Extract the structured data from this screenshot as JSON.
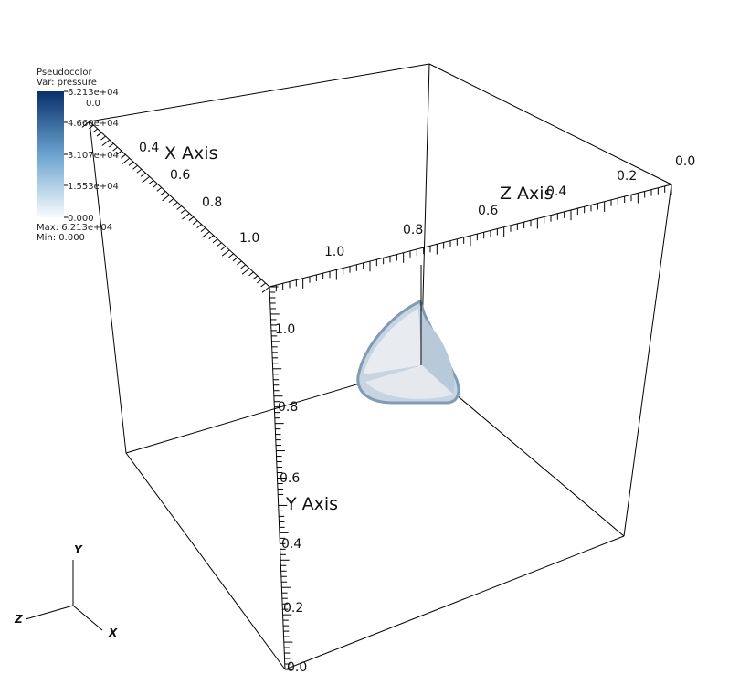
{
  "legend": {
    "plot_type": "Pseudocolor",
    "var_label": "Var: pressure",
    "tick_labels": [
      "6.213e+04",
      "4.660e+04",
      "3.107e+04",
      "1.553e+04",
      "0.000"
    ],
    "overlay_label": "0.0",
    "max_label": "Max:  6.213e+04",
    "min_label": "Min:  0.000",
    "color_top": "#08306b",
    "color_bottom": "#f7fbff"
  },
  "chart_data": {
    "type": "3d-volume",
    "title": "",
    "variable": "pressure",
    "value_range": [
      0,
      62130
    ],
    "axes": {
      "x": {
        "title": "X Axis",
        "ticks": [
          "0.4",
          "0.6",
          "0.8",
          "1.0"
        ]
      },
      "y": {
        "title": "Y Axis",
        "ticks": [
          "0.0",
          "0.2",
          "0.4",
          "0.6",
          "0.8",
          "1.0"
        ]
      },
      "z": {
        "title": "Z Axis",
        "ticks": [
          "0.0",
          "0.2",
          "0.4",
          "0.6",
          "0.8",
          "1.0"
        ]
      }
    },
    "triad": {
      "x": "X",
      "y": "Y",
      "z": "Z"
    },
    "surface_colors": [
      "#c7d4e2",
      "#e8ebef",
      "#b8c9da",
      "#7f9bb6"
    ]
  }
}
